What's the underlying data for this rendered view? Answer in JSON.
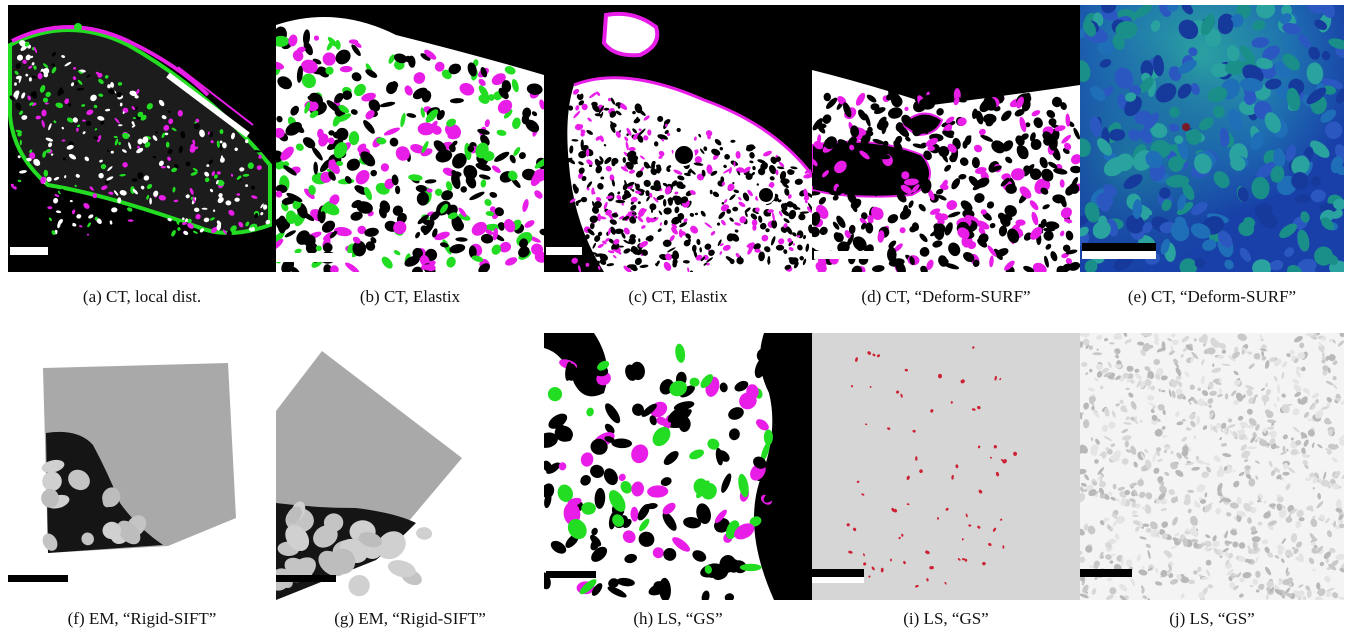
{
  "figure": {
    "panels": [
      {
        "id": "a",
        "caption": "(a) CT, local dist.",
        "scalebar_color": "#ffffff"
      },
      {
        "id": "b",
        "caption": "(b) CT, Elastix",
        "scalebar_color": "#ffffff"
      },
      {
        "id": "c",
        "caption": "(c) CT, Elastix",
        "scalebar_color": "#ffffff"
      },
      {
        "id": "d",
        "caption": "(d) CT, “Deform-SURF”",
        "scalebar_color": "#ffffff"
      },
      {
        "id": "e",
        "caption": "(e) CT, “Deform-SURF”",
        "scalebar_color": "#ffffff"
      },
      {
        "id": "f",
        "caption": "(f) EM, “Rigid-SIFT”",
        "scalebar_color": "#000000"
      },
      {
        "id": "g",
        "caption": "(g) EM, “Rigid-SIFT”",
        "scalebar_color": "#000000"
      },
      {
        "id": "h",
        "caption": "(h) LS, “GS”",
        "scalebar_color": "#000000"
      },
      {
        "id": "i",
        "caption": "(i) LS, “GS”",
        "scalebar_color": "#000000"
      },
      {
        "id": "j",
        "caption": "(j) LS, “GS”",
        "scalebar_color": "#000000"
      }
    ],
    "colors": {
      "magenta": "#e81ee8",
      "green": "#22dd22",
      "black": "#000000",
      "white": "#ffffff",
      "em_gray": "#a9a9a9",
      "ls_gray": "#d6d6d6",
      "red_spots": "#cc2233",
      "deep_blue": "#1840a8",
      "teal": "#1a8f8a"
    }
  }
}
